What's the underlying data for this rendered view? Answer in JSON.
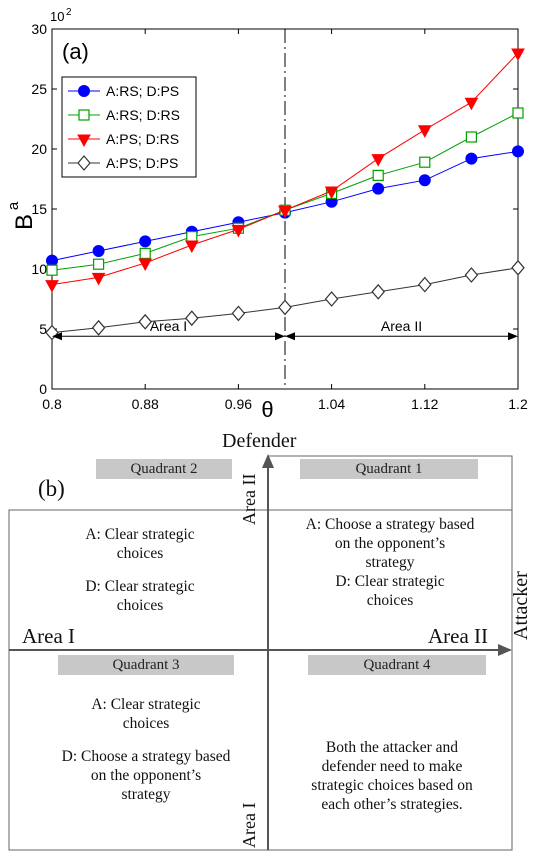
{
  "chart_data": {
    "type": "line",
    "panel_label": "(a)",
    "ylabel": "B",
    "ylabel_superscript": "a",
    "xlabel": "θ",
    "y_multiplier": "10",
    "y_multiplier_exp": "2",
    "xlim": [
      0.8,
      1.2
    ],
    "ylim": [
      0,
      30
    ],
    "x_ticks": [
      0.8,
      0.88,
      0.96,
      1.04,
      1.12,
      1.2
    ],
    "x_tick_labels": [
      "0.8",
      "0.88",
      "0.96",
      "1.04",
      "1.12",
      "1.2"
    ],
    "y_ticks": [
      0,
      5,
      10,
      15,
      20,
      25,
      30
    ],
    "y_tick_labels": [
      "0",
      "5",
      "10",
      "15",
      "20",
      "25",
      "30"
    ],
    "x": [
      0.8,
      0.84,
      0.88,
      0.92,
      0.96,
      1.0,
      1.04,
      1.08,
      1.12,
      1.16,
      1.2
    ],
    "divider_x": 1.0,
    "legend_position": "top-left",
    "grid": false,
    "series": [
      {
        "name": "A:RS; D:PS",
        "color": "#0000ff",
        "marker": "circle-filled",
        "values": [
          10.7,
          11.5,
          12.3,
          13.1,
          13.9,
          14.7,
          15.6,
          16.7,
          17.4,
          19.2,
          19.8
        ]
      },
      {
        "name": "A:RS; D:RS",
        "color": "#00a000",
        "marker": "square-open",
        "values": [
          9.9,
          10.4,
          11.3,
          12.7,
          13.4,
          14.9,
          16.3,
          17.8,
          18.9,
          21.0,
          23.0
        ]
      },
      {
        "name": "A:PS; D:RS",
        "color": "#ff0000",
        "marker": "triangle-down-filled",
        "values": [
          8.7,
          9.3,
          10.5,
          12.0,
          13.3,
          14.9,
          16.5,
          19.2,
          21.6,
          23.9,
          28.0
        ]
      },
      {
        "name": "A:PS; D:PS",
        "color": "#333333",
        "marker": "diamond-open",
        "values": [
          4.7,
          5.1,
          5.6,
          5.9,
          6.3,
          6.8,
          7.5,
          8.1,
          8.7,
          9.5,
          10.1
        ]
      }
    ],
    "annotations": {
      "area1": {
        "label": "Area I",
        "from": 0.8,
        "to": 1.0,
        "y": 4.4
      },
      "area2": {
        "label": "Area II",
        "from": 1.0,
        "to": 1.2,
        "y": 4.4
      }
    }
  },
  "diagram": {
    "panel_label": "(b)",
    "y_axis_label": "Defender",
    "x_axis_label": "Attacker",
    "left_label": "Area I",
    "right_label": "Area II",
    "top_label": "Area II",
    "bottom_label": "Area I",
    "quadrants": {
      "q1": {
        "title": "Quadrant 1",
        "line1": "A: Choose a strategy based",
        "line2": "on the opponent’s",
        "line3": "strategy",
        "line4": "D: Clear strategic",
        "line5": "choices"
      },
      "q2": {
        "title": "Quadrant 2",
        "line1": "A: Clear strategic",
        "line2": "choices",
        "line3": "D: Clear strategic",
        "line4": "choices"
      },
      "q3": {
        "title": "Quadrant 3",
        "line1": "A: Clear strategic",
        "line2": "choices",
        "line3": "D: Choose a strategy based",
        "line4": "on the opponent’s",
        "line5": "strategy"
      },
      "q4": {
        "title": "Quadrant 4",
        "line1": "Both the attacker and",
        "line2": "defender need to make",
        "line3": "strategic choices based on",
        "line4": "each other’s strategies."
      }
    }
  }
}
